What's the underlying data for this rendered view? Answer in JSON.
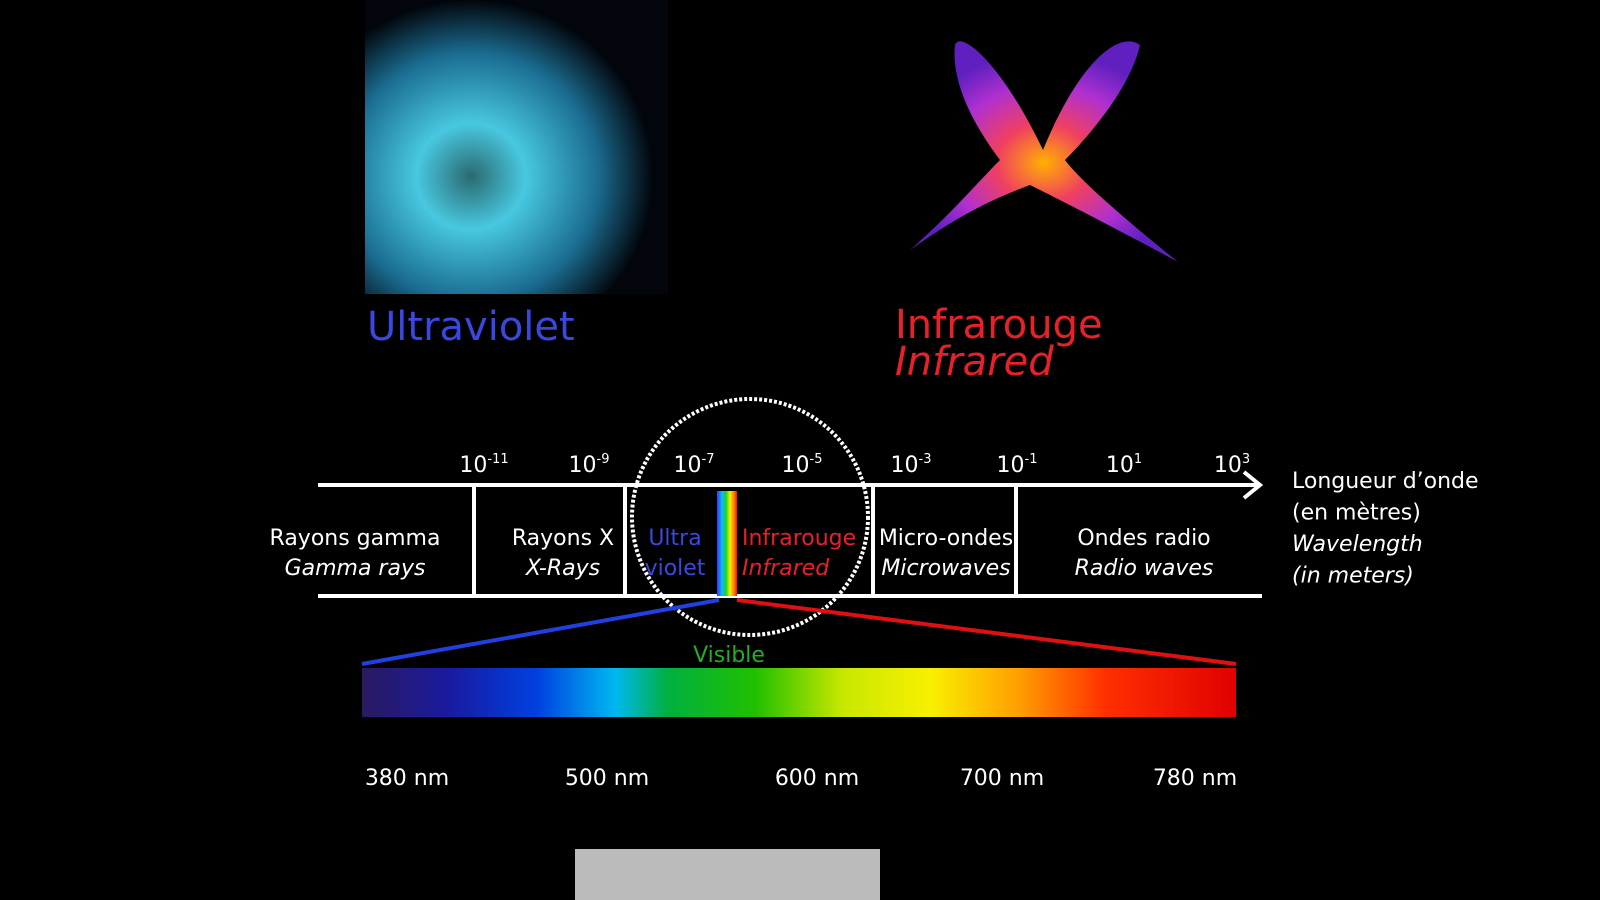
{
  "uv_title": "Ultraviolet",
  "ir_title": {
    "fr": "Infrarouge",
    "en": "Infrared"
  },
  "ticks": [
    {
      "base": "10",
      "exp": "-11"
    },
    {
      "base": "10",
      "exp": "-9"
    },
    {
      "base": "10",
      "exp": "-7"
    },
    {
      "base": "10",
      "exp": "-5"
    },
    {
      "base": "10",
      "exp": "-3"
    },
    {
      "base": "10",
      "exp": "-1"
    },
    {
      "base": "10",
      "exp": "1"
    },
    {
      "base": "10",
      "exp": "3"
    }
  ],
  "bands": [
    {
      "fr": "Rayons gamma",
      "en": "Gamma rays"
    },
    {
      "fr": "Rayons X",
      "en": "X-Rays"
    },
    {
      "fr": "Ultra",
      "en": "violet"
    },
    {
      "fr": "Infrarouge",
      "en": "Infrared"
    },
    {
      "fr": "Micro-ondes",
      "en": "Microwaves"
    },
    {
      "fr": "Ondes radio",
      "en": "Radio waves"
    }
  ],
  "axis_label": [
    "Longueur d’onde",
    "(en mètres)",
    "Wavelength",
    "(in meters)"
  ],
  "visible": "Visible",
  "nm_labels": [
    "380 nm",
    "500 nm",
    "600 nm",
    "700 nm",
    "780 nm"
  ]
}
